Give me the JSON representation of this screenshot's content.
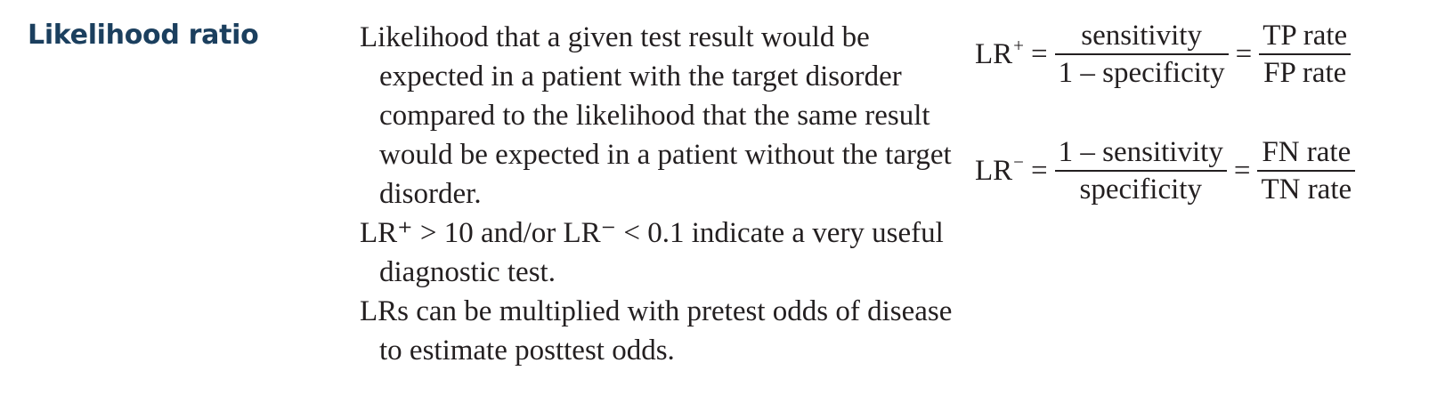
{
  "heading": "Likelihood ratio",
  "paragraphs": [
    "Likelihood that a given test result would be expected in a patient with the target disorder compared to the likelihood that the same result would be expected in a patient without the target disorder.",
    "LR⁺ > 10 and/or LR⁻ < 0.1 indicate a very useful diagnostic test.",
    "LRs can be multiplied with pretest odds of disease to estimate posttest odds."
  ],
  "formulas": {
    "positive": {
      "lhs": "LR",
      "sign": "+",
      "eq": "=",
      "frac1_num": "sensitivity",
      "frac1_den": "1 – specificity",
      "frac2_num": "TP rate",
      "frac2_den": "FP rate"
    },
    "negative": {
      "lhs": "LR",
      "sign": "−",
      "eq": "=",
      "frac1_num": "1 – sensitivity",
      "frac1_den": "specificity",
      "frac2_num": "FN rate",
      "frac2_den": "TN rate"
    }
  }
}
